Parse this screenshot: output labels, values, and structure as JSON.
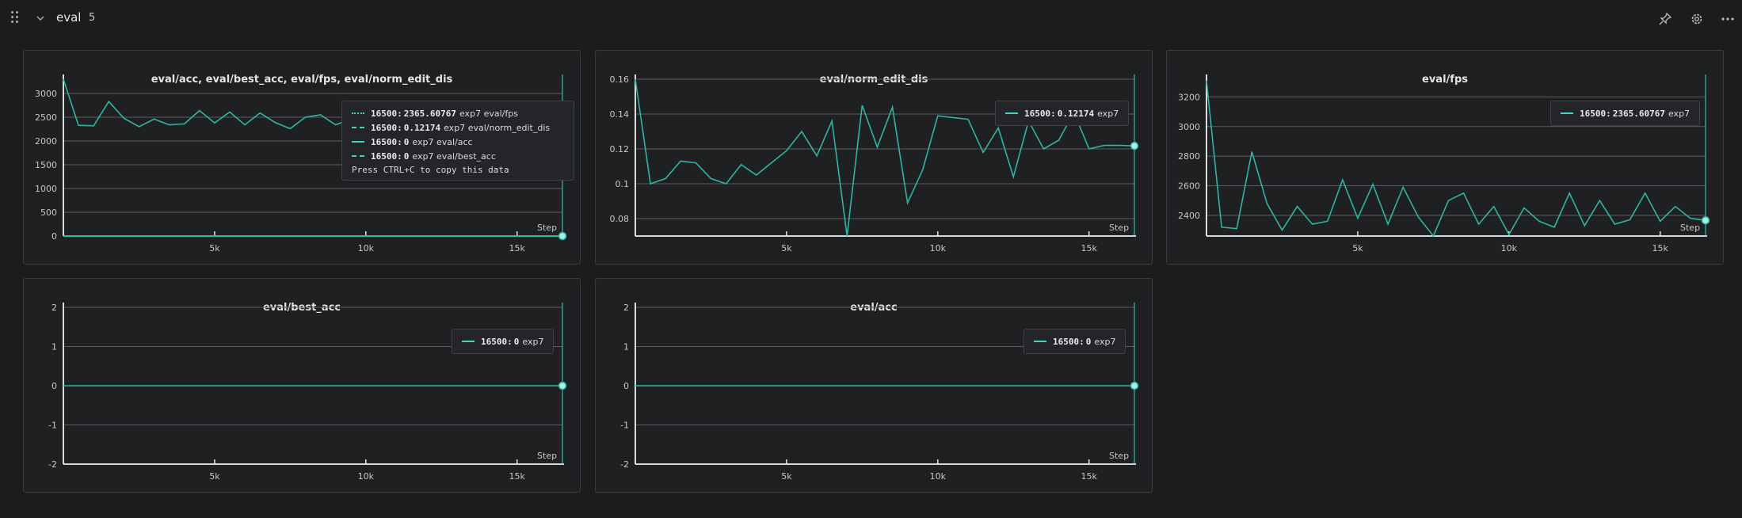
{
  "section": {
    "title": "eval",
    "count": "5"
  },
  "icons": {
    "drag": "drag-handle-icon",
    "collapse": "chevron-down-icon",
    "pin": "pin-icon",
    "settings": "gear-icon",
    "more": "more-horizontal-icon"
  },
  "colors": {
    "series": "#2eb5a3",
    "accent": "#3fd6c1"
  },
  "panels": [
    {
      "title": "eval/acc, eval/best_acc, eval/fps, eval/norm_edit_dis",
      "step_label": "Step",
      "legend": [
        {
          "step": "16500:",
          "value": "2365.60767",
          "run": "exp7",
          "metric": "eval/fps"
        },
        {
          "step": "16500:",
          "value": "0.12174",
          "run": "exp7",
          "metric": "eval/norm_edit_dis"
        },
        {
          "step": "16500:",
          "value": "0",
          "run": "exp7",
          "metric": "eval/acc"
        },
        {
          "step": "16500:",
          "value": "0",
          "run": "exp7",
          "metric": "eval/best_acc"
        }
      ],
      "hint": "Press CTRL+C to copy this data"
    },
    {
      "title": "eval/norm_edit_dis",
      "step_label": "Step",
      "legend": [
        {
          "step": "16500:",
          "value": "0.12174",
          "run": "exp7"
        }
      ]
    },
    {
      "title": "eval/fps",
      "step_label": "Step",
      "legend": [
        {
          "step": "16500:",
          "value": "2365.60767",
          "run": "exp7"
        }
      ]
    },
    {
      "title": "eval/best_acc",
      "step_label": "Step",
      "legend": [
        {
          "step": "16500:",
          "value": "0",
          "run": "exp7"
        }
      ]
    },
    {
      "title": "eval/acc",
      "step_label": "Step",
      "legend": [
        {
          "step": "16500:",
          "value": "0",
          "run": "exp7"
        }
      ]
    }
  ],
  "chart_data": [
    {
      "type": "line",
      "title": "eval/acc, eval/best_acc, eval/fps, eval/norm_edit_dis",
      "xlabel": "Step",
      "x_ticks": [
        "5k",
        "10k",
        "15k"
      ],
      "y_ticks": [
        "3000",
        "2500",
        "2000",
        "1500",
        "1000",
        "500",
        "0"
      ],
      "xlim": [
        0,
        16500
      ],
      "ylim": [
        0,
        3300
      ],
      "series": [
        {
          "name": "eval/fps",
          "x": [
            0,
            500,
            1000,
            1500,
            2000,
            2500,
            3000,
            3500,
            4000,
            4500,
            5000,
            5500,
            6000,
            6500,
            7000,
            7500,
            8000,
            8500,
            9000,
            9500,
            10000,
            10500,
            11000,
            11500,
            12000,
            12500,
            13000,
            13500,
            14000,
            14500,
            15000,
            15500,
            16000,
            16500
          ],
          "values": [
            3300,
            2330,
            2320,
            2830,
            2480,
            2300,
            2460,
            2340,
            2360,
            2640,
            2380,
            2610,
            2340,
            2590,
            2390,
            2260,
            2500,
            2550,
            2340,
            2460,
            2270,
            2450,
            2360,
            2320,
            2550,
            2330,
            2500,
            2340,
            2370,
            2550,
            2360,
            2460,
            2380,
            2366
          ]
        },
        {
          "name": "eval/norm_edit_dis",
          "x": [
            0,
            16500
          ],
          "values": [
            0.12,
            0.12174
          ]
        },
        {
          "name": "eval/acc",
          "x": [
            0,
            16500
          ],
          "values": [
            0,
            0
          ]
        },
        {
          "name": "eval/best_acc",
          "x": [
            0,
            16500
          ],
          "values": [
            0,
            0
          ]
        }
      ]
    },
    {
      "type": "line",
      "title": "eval/norm_edit_dis",
      "xlabel": "Step",
      "x_ticks": [
        "5k",
        "10k",
        "15k"
      ],
      "y_ticks": [
        "0.16",
        "0.14",
        "0.12",
        "0.1",
        "0.08"
      ],
      "xlim": [
        0,
        16500
      ],
      "ylim": [
        0.07,
        0.16
      ],
      "series": [
        {
          "name": "exp7",
          "x": [
            0,
            500,
            1000,
            1500,
            2000,
            2500,
            3000,
            3500,
            4000,
            4500,
            5000,
            5500,
            6000,
            6500,
            7000,
            7500,
            8000,
            8500,
            9000,
            9500,
            10000,
            10500,
            11000,
            11500,
            12000,
            12500,
            13000,
            13500,
            14000,
            14500,
            15000,
            15500,
            16000,
            16500
          ],
          "values": [
            0.16,
            0.1,
            0.103,
            0.113,
            0.112,
            0.103,
            0.1,
            0.111,
            0.105,
            0.112,
            0.119,
            0.13,
            0.116,
            0.136,
            0.07,
            0.145,
            0.121,
            0.144,
            0.089,
            0.108,
            0.139,
            0.138,
            0.137,
            0.118,
            0.132,
            0.104,
            0.136,
            0.12,
            0.125,
            0.141,
            0.12,
            0.122,
            0.122,
            0.12174
          ]
        }
      ]
    },
    {
      "type": "line",
      "title": "eval/fps",
      "xlabel": "Step",
      "x_ticks": [
        "5k",
        "10k",
        "15k"
      ],
      "y_ticks": [
        "3200",
        "3000",
        "2800",
        "2600",
        "2400"
      ],
      "xlim": [
        0,
        16500
      ],
      "ylim": [
        2260,
        3320
      ],
      "series": [
        {
          "name": "exp7",
          "x": [
            0,
            500,
            1000,
            1500,
            2000,
            2500,
            3000,
            3500,
            4000,
            4500,
            5000,
            5500,
            6000,
            6500,
            7000,
            7500,
            8000,
            8500,
            9000,
            9500,
            10000,
            10500,
            11000,
            11500,
            12000,
            12500,
            13000,
            13500,
            14000,
            14500,
            15000,
            15500,
            16000,
            16500
          ],
          "values": [
            3310,
            2320,
            2310,
            2830,
            2480,
            2300,
            2460,
            2340,
            2360,
            2640,
            2380,
            2610,
            2340,
            2590,
            2390,
            2260,
            2500,
            2550,
            2340,
            2460,
            2270,
            2450,
            2360,
            2320,
            2550,
            2330,
            2500,
            2340,
            2370,
            2550,
            2360,
            2460,
            2380,
            2366
          ]
        }
      ]
    },
    {
      "type": "line",
      "title": "eval/best_acc",
      "xlabel": "Step",
      "x_ticks": [
        "5k",
        "10k",
        "15k"
      ],
      "y_ticks": [
        "2",
        "1",
        "0",
        "-1",
        "-2"
      ],
      "xlim": [
        0,
        16500
      ],
      "ylim": [
        -2,
        2
      ],
      "series": [
        {
          "name": "exp7",
          "x": [
            0,
            16500
          ],
          "values": [
            0,
            0
          ]
        }
      ]
    },
    {
      "type": "line",
      "title": "eval/acc",
      "xlabel": "Step",
      "x_ticks": [
        "5k",
        "10k",
        "15k"
      ],
      "y_ticks": [
        "2",
        "1",
        "0",
        "-1",
        "-2"
      ],
      "xlim": [
        0,
        16500
      ],
      "ylim": [
        -2,
        2
      ],
      "series": [
        {
          "name": "exp7",
          "x": [
            0,
            16500
          ],
          "values": [
            0,
            0
          ]
        }
      ]
    }
  ]
}
